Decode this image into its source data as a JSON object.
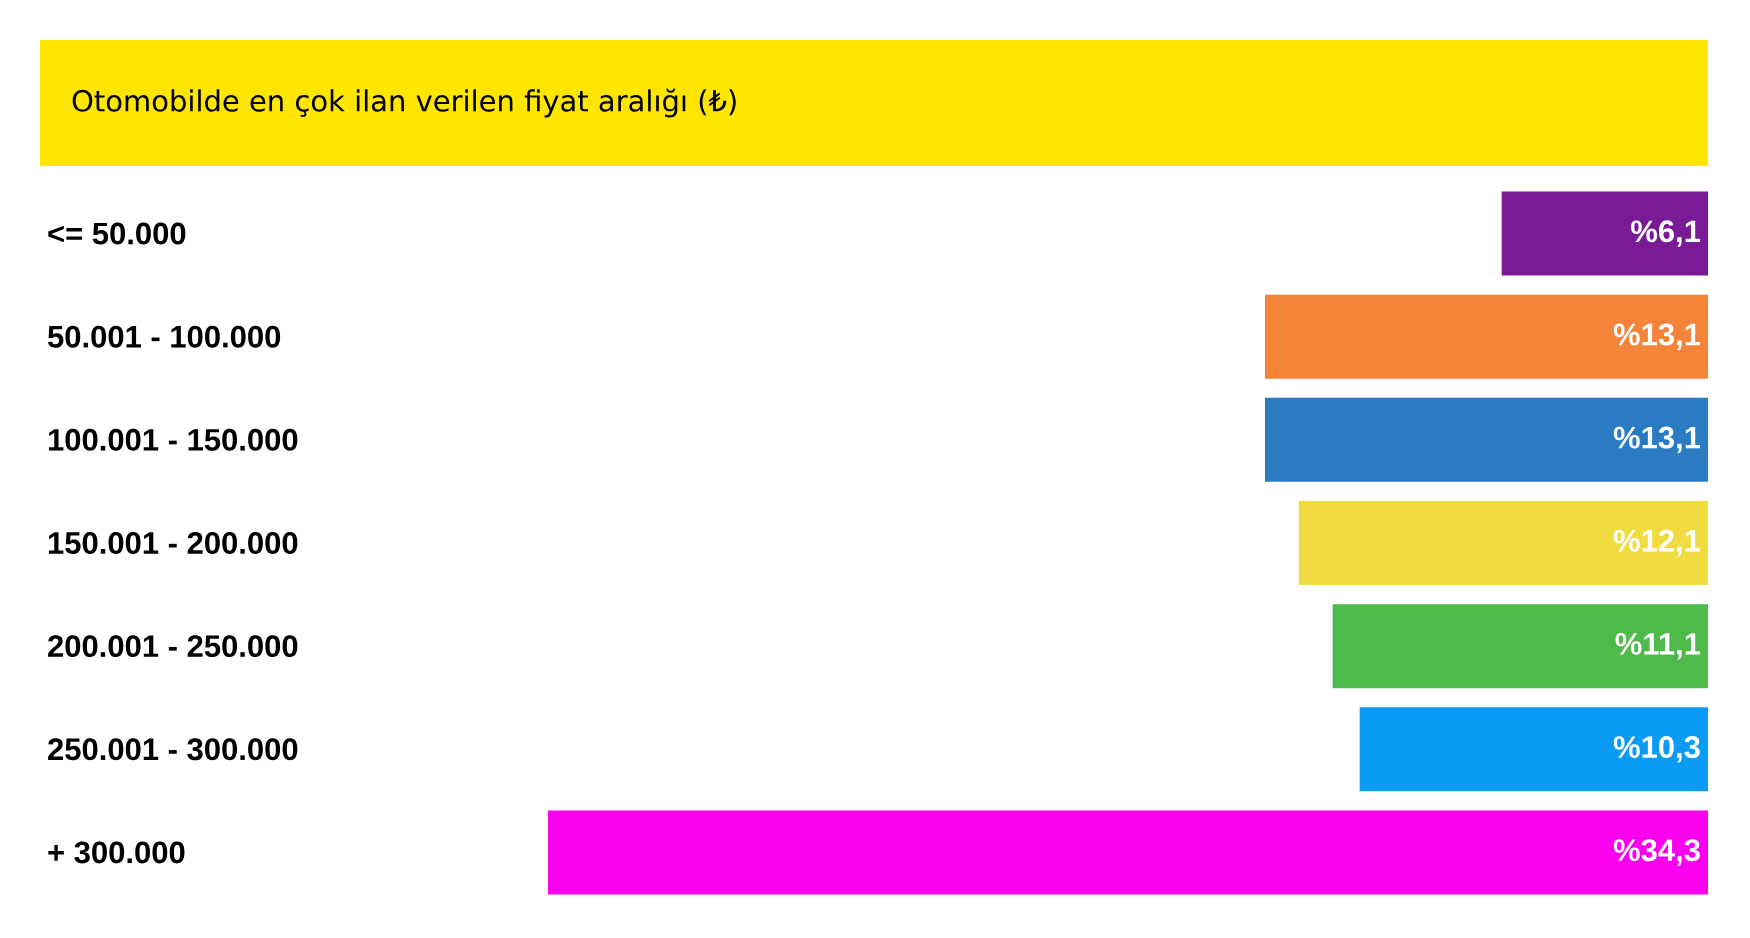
{
  "chart_data": {
    "type": "bar",
    "orientation": "horizontal",
    "title": "Otomobilde en çok ilan verilen fiyat aralığı (₺)",
    "categories": [
      "<= 50.000",
      "50.001 - 100.000",
      "100.001 - 150.000",
      "150.001 - 200.000",
      "200.001 - 250.000",
      "250.001 - 300.000",
      "+ 300.000"
    ],
    "values": [
      6.1,
      13.1,
      13.1,
      12.1,
      11.1,
      10.3,
      34.3
    ],
    "value_labels": [
      "%6,1",
      "%13,1",
      "%13,1",
      "%12,1",
      "%11,1",
      "%10,3",
      "%34,3"
    ],
    "colors": [
      "#7b1a96",
      "#f4843a",
      "#2a7bc2",
      "#f0dc40",
      "#4fba4c",
      "#0a9cf5",
      "#fb00ee"
    ]
  }
}
